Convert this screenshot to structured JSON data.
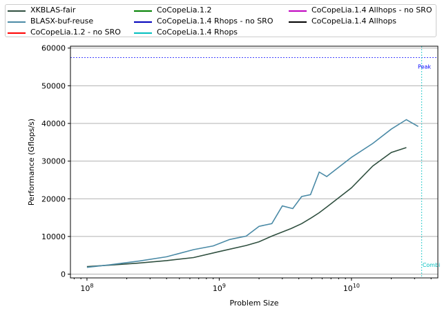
{
  "chart_data": {
    "type": "line",
    "title": "",
    "xlabel": "Problem Size",
    "ylabel": "Performance (Gflops/s)",
    "xscale": "log",
    "xlim": [
      75000000,
      45000000000
    ],
    "ylim": [
      -1000,
      60500
    ],
    "xticks": [
      {
        "value": 100000000,
        "base": "10",
        "exp": "8"
      },
      {
        "value": 1000000000,
        "base": "10",
        "exp": "9"
      },
      {
        "value": 10000000000,
        "base": "10",
        "exp": "10"
      }
    ],
    "yticks": [
      0,
      10000,
      20000,
      30000,
      40000,
      50000,
      60000
    ],
    "grid": "horizontal",
    "legend_position": "top",
    "series": [
      {
        "name": "XKBLAS-fair",
        "color": "#2f4f3f",
        "points": [
          [
            100000000,
            2000
          ],
          [
            150000000,
            2400
          ],
          [
            240000000,
            2900
          ],
          [
            400000000,
            3600
          ],
          [
            640000000,
            4400
          ],
          [
            1000000000,
            6000
          ],
          [
            1600000000,
            7600
          ],
          [
            2000000000,
            8600
          ],
          [
            2500000000,
            10100
          ],
          [
            3500000000,
            12100
          ],
          [
            4200000000,
            13400
          ],
          [
            5000000000,
            15000
          ],
          [
            5700000000,
            16300
          ],
          [
            6600000000,
            18000
          ],
          [
            10000000000,
            22900
          ],
          [
            14500000000,
            28700
          ],
          [
            20000000000,
            32300
          ],
          [
            26000000000,
            33600
          ]
        ]
      },
      {
        "name": "BLASX-buf-reuse",
        "color": "#4a8aa6",
        "points": [
          [
            100000000,
            1800
          ],
          [
            150000000,
            2500
          ],
          [
            250000000,
            3500
          ],
          [
            400000000,
            4600
          ],
          [
            640000000,
            6500
          ],
          [
            900000000,
            7500
          ],
          [
            1200000000,
            9200
          ],
          [
            1600000000,
            10100
          ],
          [
            2000000000,
            12700
          ],
          [
            2500000000,
            13400
          ],
          [
            3000000000,
            18100
          ],
          [
            3600000000,
            17400
          ],
          [
            4200000000,
            20600
          ],
          [
            4900000000,
            21100
          ],
          [
            5700000000,
            27100
          ],
          [
            6500000000,
            25900
          ],
          [
            10000000000,
            31000
          ],
          [
            14500000000,
            34700
          ],
          [
            20000000000,
            38500
          ],
          [
            26000000000,
            41000
          ],
          [
            32000000000,
            39200
          ]
        ]
      },
      {
        "name": "CoCopeLia.1.2 - no SRO",
        "color": "#ff0000",
        "points": []
      },
      {
        "name": "CoCopeLia.1.2",
        "color": "#008000",
        "points": []
      },
      {
        "name": "CoCopeLia.1.4 Rhops - no SRO",
        "color": "#0000bb",
        "points": []
      },
      {
        "name": "CoCopeLia.1.4 Rhops",
        "color": "#00bfbf",
        "points": []
      },
      {
        "name": "CoCopeLia.1.4 Allhops - no SRO",
        "color": "#bf00bf",
        "points": []
      },
      {
        "name": "CoCopeLia.1.4 Allhops",
        "color": "#000000",
        "points": []
      }
    ],
    "annotations": [
      {
        "type": "hline",
        "y": 57500,
        "label": "Peak",
        "color": "#0000ff"
      },
      {
        "type": "vline",
        "x": 34000000000,
        "label": "Combi",
        "color": "#00bfbf"
      }
    ]
  }
}
